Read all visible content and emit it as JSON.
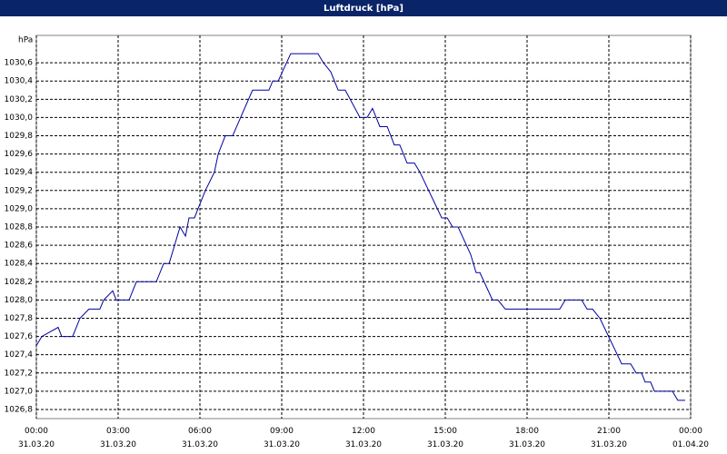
{
  "chart_data": {
    "type": "line",
    "title": "Luftdruck [hPa]",
    "y_label": "hPa",
    "x": [
      0,
      0.2,
      0.8,
      0.93,
      1.33,
      1.6,
      1.93,
      2.33,
      2.47,
      2.8,
      2.93,
      3.4,
      3.67,
      4.4,
      4.67,
      4.87,
      5.07,
      5.27,
      5.47,
      5.6,
      5.8,
      5.93,
      6.2,
      6.53,
      6.67,
      6.93,
      7.2,
      7.93,
      8.53,
      8.67,
      8.87,
      9.33,
      10.33,
      10.53,
      10.8,
      11.07,
      11.33,
      11.87,
      12.13,
      12.33,
      12.6,
      12.87,
      13.13,
      13.33,
      13.6,
      13.87,
      14.07,
      14.87,
      15.07,
      15.27,
      15.47,
      15.93,
      16.13,
      16.27,
      16.73,
      16.93,
      17.2,
      19.2,
      19.4,
      20,
      20.2,
      20.4,
      20.67,
      21.47,
      21.8,
      22,
      22.2,
      22.33,
      22.53,
      22.67,
      23.33,
      23.53,
      23.8
    ],
    "series": [
      {
        "name": "Luftdruck",
        "color": "#0000a0",
        "values": [
          1027.5,
          1027.6,
          1027.7,
          1027.6,
          1027.6,
          1027.8,
          1027.9,
          1027.9,
          1028.0,
          1028.1,
          1028.0,
          1028.0,
          1028.2,
          1028.2,
          1028.4,
          1028.4,
          1028.6,
          1028.8,
          1028.7,
          1028.9,
          1028.9,
          1029.0,
          1029.2,
          1029.4,
          1029.6,
          1029.8,
          1029.8,
          1030.3,
          1030.3,
          1030.4,
          1030.4,
          1030.7,
          1030.7,
          1030.6,
          1030.5,
          1030.3,
          1030.3,
          1030.0,
          1030.0,
          1030.1,
          1029.9,
          1029.9,
          1029.7,
          1029.7,
          1029.5,
          1029.5,
          1029.4,
          1028.9,
          1028.9,
          1028.8,
          1028.8,
          1028.5,
          1028.3,
          1028.3,
          1028.0,
          1028.0,
          1027.9,
          1027.9,
          1028.0,
          1028.0,
          1027.9,
          1027.9,
          1027.8,
          1027.3,
          1027.3,
          1027.2,
          1027.2,
          1027.1,
          1027.1,
          1027.0,
          1027.0,
          1026.9,
          1026.9
        ]
      }
    ],
    "xlim": [
      0,
      24
    ],
    "xticks": [
      {
        "value": 0,
        "label": "00:00 31.03.20"
      },
      {
        "value": 3,
        "label": "03:00 31.03.20"
      },
      {
        "value": 6,
        "label": "06:00 31.03.20"
      },
      {
        "value": 9,
        "label": "09:00 31.03.20"
      },
      {
        "value": 12,
        "label": "12:00 31.03.20"
      },
      {
        "value": 15,
        "label": "15:00 31.03.20"
      },
      {
        "value": 18,
        "label": "18:00 31.03.20"
      },
      {
        "value": 21,
        "label": "21:00 31.03.20"
      },
      {
        "value": 24,
        "label": "00:00 01.04.20"
      }
    ],
    "ylim": [
      1026.7,
      1030.9
    ],
    "yticks": [
      {
        "value": 1026.8,
        "label": "1026,8"
      },
      {
        "value": 1027.0,
        "label": "1027,0"
      },
      {
        "value": 1027.2,
        "label": "1027,2"
      },
      {
        "value": 1027.4,
        "label": "1027,4"
      },
      {
        "value": 1027.6,
        "label": "1027,6"
      },
      {
        "value": 1027.8,
        "label": "1027,8"
      },
      {
        "value": 1028.0,
        "label": "1028,0"
      },
      {
        "value": 1028.2,
        "label": "1028,2"
      },
      {
        "value": 1028.4,
        "label": "1028,4"
      },
      {
        "value": 1028.6,
        "label": "1028,6"
      },
      {
        "value": 1028.8,
        "label": "1028,8"
      },
      {
        "value": 1029.0,
        "label": "1029,0"
      },
      {
        "value": 1029.2,
        "label": "1029,2"
      },
      {
        "value": 1029.4,
        "label": "1029,4"
      },
      {
        "value": 1029.6,
        "label": "1029,6"
      },
      {
        "value": 1029.8,
        "label": "1029,8"
      },
      {
        "value": 1030.0,
        "label": "1030,0"
      },
      {
        "value": 1030.2,
        "label": "1030,2"
      },
      {
        "value": 1030.4,
        "label": "1030,4"
      },
      {
        "value": 1030.6,
        "label": "1030,6"
      }
    ],
    "grid": true
  }
}
